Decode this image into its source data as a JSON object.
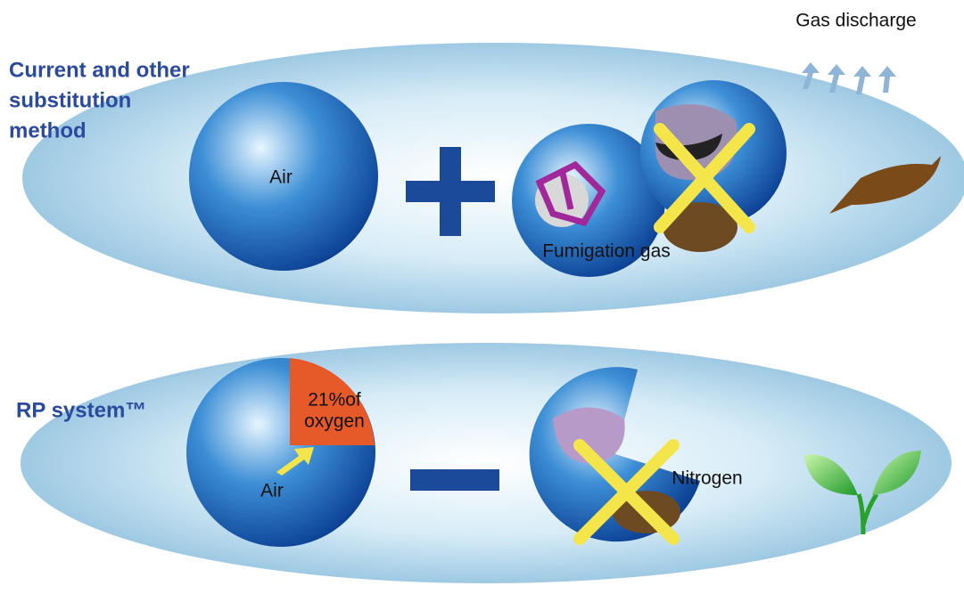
{
  "top": {
    "title_lines": [
      "Current and other",
      "substitution",
      "method"
    ],
    "discharge_label": "Gas discharge",
    "air_label": "Air",
    "gas_label": "Fumigation gas"
  },
  "bottom": {
    "title": "RP system™",
    "oxygen_lines": [
      "21%of",
      "oxygen"
    ],
    "air_label": "Air",
    "nitrogen_label": "Nitrogen"
  }
}
